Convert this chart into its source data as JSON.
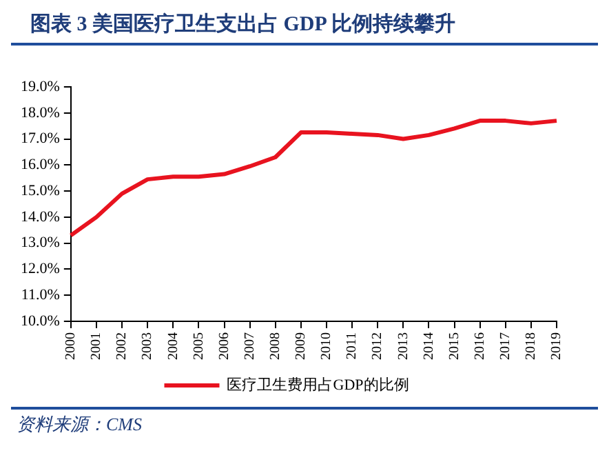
{
  "chart_data": {
    "type": "line",
    "title": "图表 3   美国医疗卫生支出占 GDP 比例持续攀升",
    "categories": [
      "2000",
      "2001",
      "2002",
      "2003",
      "2004",
      "2005",
      "2006",
      "2007",
      "2008",
      "2009",
      "2010",
      "2011",
      "2012",
      "2013",
      "2014",
      "2015",
      "2016",
      "2017",
      "2018",
      "2019"
    ],
    "series": [
      {
        "name": "医疗卫生费用占GDP的比例",
        "color": "#e8131f",
        "values": [
          13.3,
          14.0,
          14.9,
          15.45,
          15.55,
          15.55,
          15.65,
          15.95,
          16.3,
          17.25,
          17.25,
          17.2,
          17.15,
          17.0,
          17.15,
          17.4,
          17.7,
          17.7,
          17.6,
          17.7
        ]
      }
    ],
    "ylim": [
      10,
      19
    ],
    "yticks": [
      {
        "value": 10,
        "label": "10.0%"
      },
      {
        "value": 11,
        "label": "11.0%"
      },
      {
        "value": 12,
        "label": "12.0%"
      },
      {
        "value": 13,
        "label": "13.0%"
      },
      {
        "value": 14,
        "label": "14.0%"
      },
      {
        "value": 15,
        "label": "15.0%"
      },
      {
        "value": 16,
        "label": "16.0%"
      },
      {
        "value": 17,
        "label": "17.0%"
      },
      {
        "value": 18,
        "label": "18.0%"
      },
      {
        "value": 19,
        "label": "19.0%"
      }
    ],
    "marker": "none",
    "legend": "bottom",
    "annotations": [
      "资料来源：CMS"
    ]
  }
}
